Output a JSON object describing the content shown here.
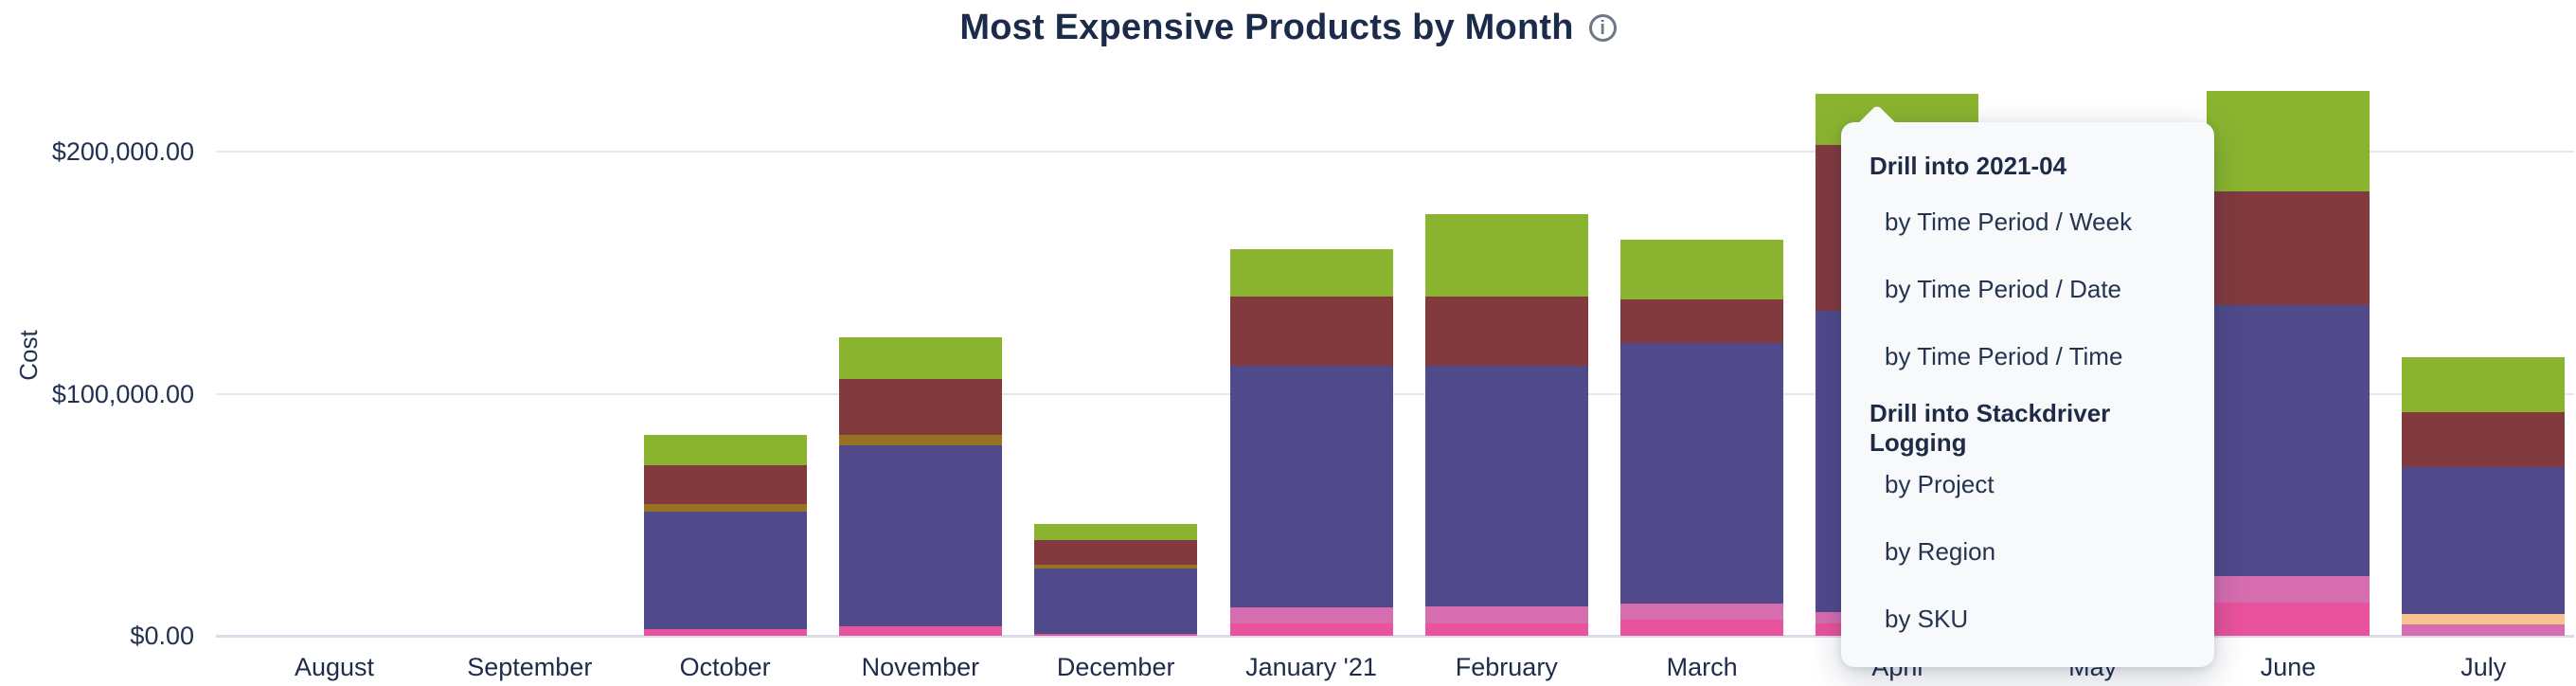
{
  "page": {
    "title": "Most Expensive Products by Month",
    "info_icon_glyph": "i"
  },
  "y_axis": {
    "label": "Cost",
    "ticks": [
      {
        "label": "$0.00",
        "value": 0
      },
      {
        "label": "$100,000.00",
        "value": 100000
      },
      {
        "label": "$200,000.00",
        "value": 200000
      }
    ]
  },
  "x_axis": {
    "months": [
      "August",
      "September",
      "October",
      "November",
      "December",
      "January '21",
      "February",
      "March",
      "April",
      "May",
      "June",
      "July"
    ]
  },
  "menu": {
    "sections": [
      {
        "header": "Drill into 2021-04",
        "items": [
          "by Time Period / Week",
          "by Time Period / Date",
          "by Time Period / Time"
        ]
      },
      {
        "header": "Drill into Stackdriver Logging",
        "items": [
          "by Project",
          "by Region",
          "by SKU"
        ]
      }
    ]
  },
  "chart_data": {
    "type": "bar",
    "stacked": true,
    "title": "Most Expensive Products by Month",
    "xlabel": "",
    "ylabel": "Cost",
    "ylim": [
      0,
      230000
    ],
    "y_gridlines": [
      0,
      100000,
      200000
    ],
    "currency_format": "$#,##0.00",
    "legend": "none",
    "categories": [
      "August",
      "September",
      "October",
      "November",
      "December",
      "January '21",
      "February",
      "March",
      "April",
      "May",
      "June",
      "July"
    ],
    "segment_colors": {
      "green": "#8ab42f",
      "maroon": "#823a3e",
      "olive": "#977223",
      "purple": "#504a8b",
      "hot_pink": "#e9529c",
      "medium_pink": "#d66daf",
      "peach": "#f6c28d"
    },
    "bars": [
      {
        "month": "August",
        "total": 0,
        "segments": []
      },
      {
        "month": "September",
        "total": 0,
        "segments": []
      },
      {
        "month": "October",
        "total": 82800,
        "segments": [
          {
            "color": "hot_pink",
            "value": 2700
          },
          {
            "color": "purple",
            "value": 48500
          },
          {
            "color": "olive",
            "value": 3100
          },
          {
            "color": "maroon",
            "value": 16000
          },
          {
            "color": "green",
            "value": 12500
          }
        ]
      },
      {
        "month": "November",
        "total": 123300,
        "segments": [
          {
            "color": "hot_pink",
            "value": 3900
          },
          {
            "color": "purple",
            "value": 74800
          },
          {
            "color": "olive",
            "value": 4300
          },
          {
            "color": "maroon",
            "value": 23100
          },
          {
            "color": "green",
            "value": 17200
          }
        ]
      },
      {
        "month": "December",
        "total": 46300,
        "segments": [
          {
            "color": "hot_pink",
            "value": 800
          },
          {
            "color": "purple",
            "value": 27000
          },
          {
            "color": "olive",
            "value": 1600
          },
          {
            "color": "maroon",
            "value": 10200
          },
          {
            "color": "green",
            "value": 6700
          }
        ]
      },
      {
        "month": "January '21",
        "total": 159800,
        "segments": [
          {
            "color": "hot_pink",
            "value": 5100
          },
          {
            "color": "medium_pink",
            "value": 6700
          },
          {
            "color": "purple",
            "value": 99800
          },
          {
            "color": "maroon",
            "value": 28600
          },
          {
            "color": "green",
            "value": 19600
          }
        ]
      },
      {
        "month": "February",
        "total": 174100,
        "segments": [
          {
            "color": "hot_pink",
            "value": 5100
          },
          {
            "color": "medium_pink",
            "value": 7000
          },
          {
            "color": "purple",
            "value": 99400
          },
          {
            "color": "maroon",
            "value": 28600
          },
          {
            "color": "green",
            "value": 34000
          }
        ]
      },
      {
        "month": "March",
        "total": 163700,
        "segments": [
          {
            "color": "hot_pink",
            "value": 6700
          },
          {
            "color": "medium_pink",
            "value": 6700
          },
          {
            "color": "purple",
            "value": 107600
          },
          {
            "color": "maroon",
            "value": 18000
          },
          {
            "color": "green",
            "value": 24700
          }
        ]
      },
      {
        "month": "April",
        "total": 223900,
        "segments": [
          {
            "color": "hot_pink",
            "value": 5100
          },
          {
            "color": "medium_pink",
            "value": 4700
          },
          {
            "color": "purple",
            "value": 124500
          },
          {
            "color": "maroon",
            "value": 68500
          },
          {
            "color": "green",
            "value": 21100
          }
        ]
      },
      {
        "month": "May",
        "total": null,
        "hidden_behind_menu": true,
        "segments": []
      },
      {
        "month": "June",
        "total": 225100,
        "segments": [
          {
            "color": "hot_pink",
            "value": 13700
          },
          {
            "color": "medium_pink",
            "value": 11000
          },
          {
            "color": "purple",
            "value": 111900
          },
          {
            "color": "maroon",
            "value": 47000
          },
          {
            "color": "green",
            "value": 41500
          }
        ]
      },
      {
        "month": "July",
        "total": 115100,
        "segments": [
          {
            "color": "medium_pink",
            "value": 4700
          },
          {
            "color": "peach",
            "value": 4300
          },
          {
            "color": "purple",
            "value": 60700
          },
          {
            "color": "maroon",
            "value": 22700
          },
          {
            "color": "green",
            "value": 22700
          }
        ]
      }
    ]
  }
}
